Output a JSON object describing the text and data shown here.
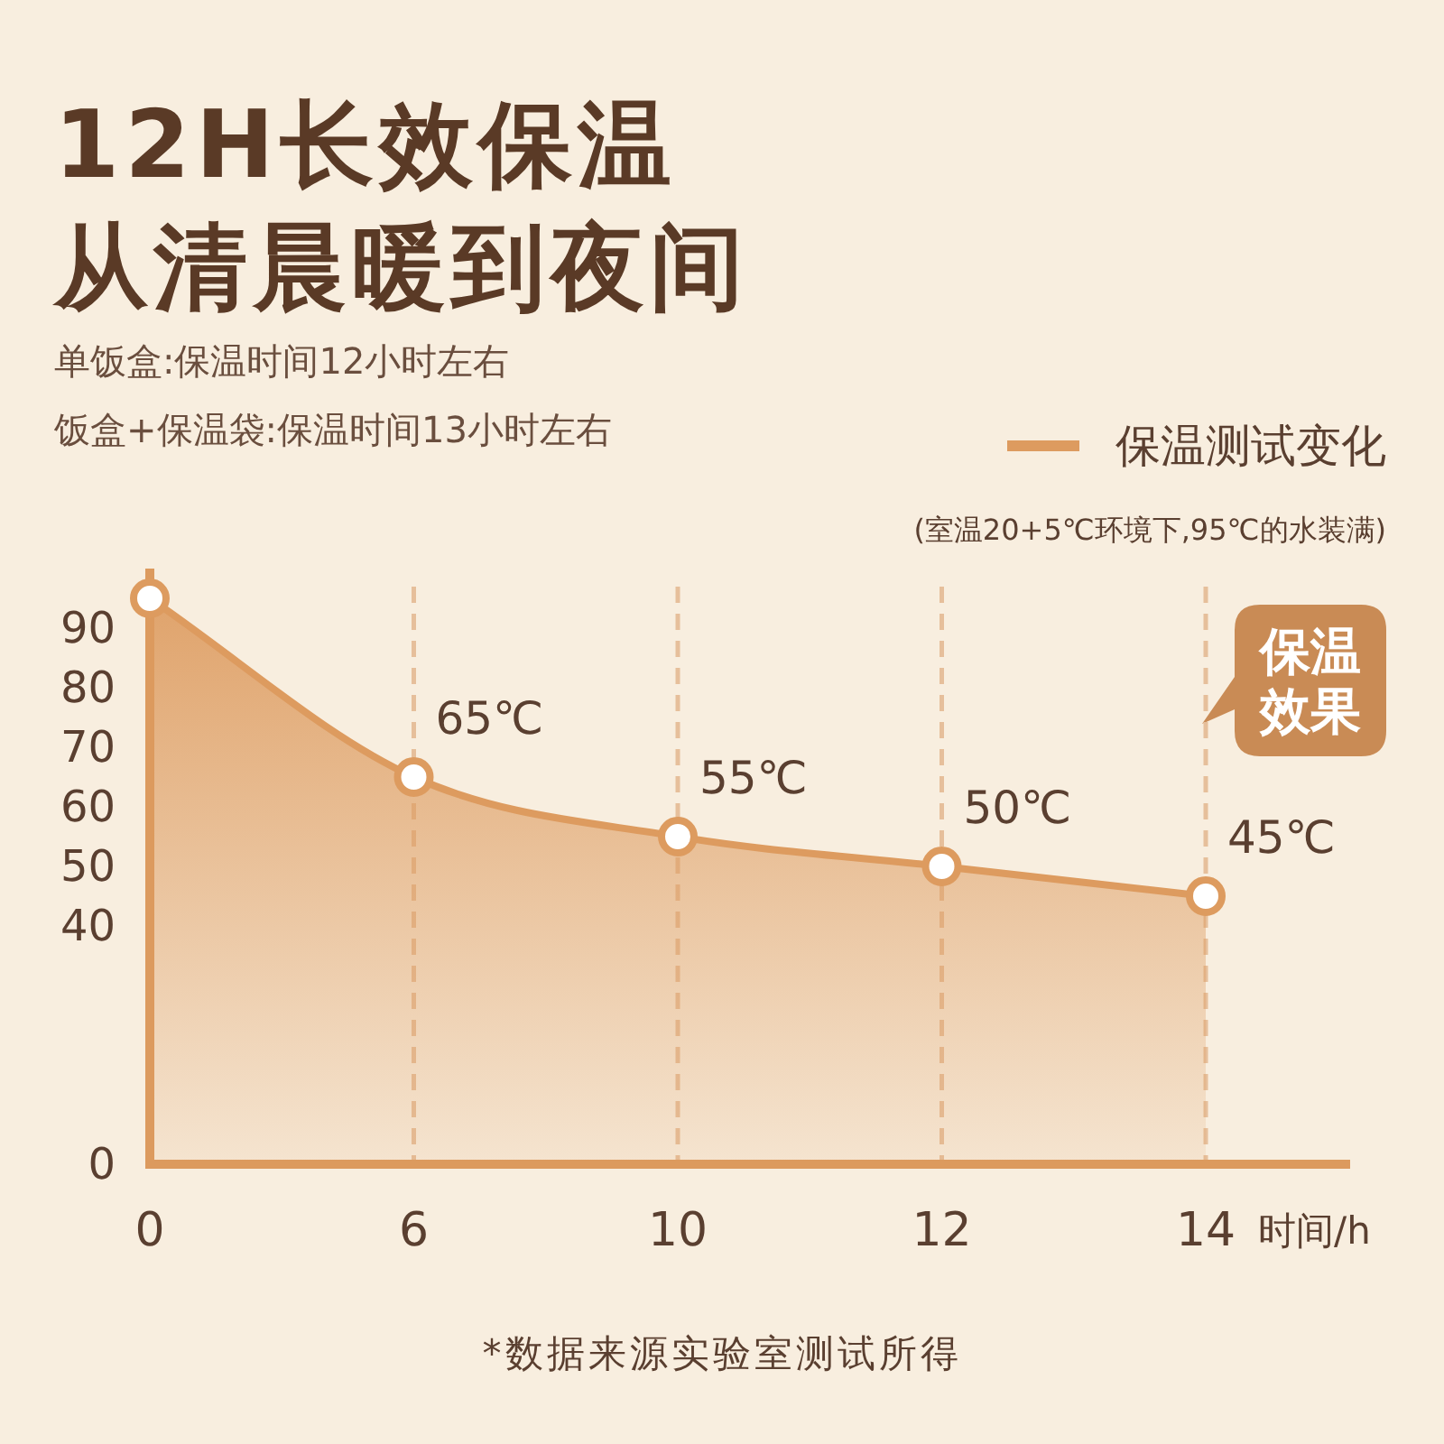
{
  "chart_data": {
    "type": "area",
    "title": "12H长效保温从清晨暖到夜间",
    "categories": [
      "0",
      "6",
      "10",
      "12",
      "14"
    ],
    "xlabel": "时间/h",
    "series": [
      {
        "name": "保温测试变化",
        "color": "#dd9b5f",
        "values": [
          95,
          65,
          55,
          50,
          45
        ],
        "value_labels": [
          null,
          "65℃",
          "55℃",
          "50℃",
          "45℃"
        ]
      }
    ],
    "ylim": [
      0,
      100
    ],
    "yticks": [
      0,
      40,
      50,
      60,
      70,
      80,
      90
    ],
    "grid": "x",
    "legend": "top right",
    "marker": "circle",
    "annotations": [
      "单饭盒:保温时间12小时左右",
      "饭盒+保温袋:保温时间13小时左右",
      "(室温20+5℃环境下,95℃的水装满)",
      "保温效果",
      "*数据来源实验室测试所得"
    ]
  }
}
